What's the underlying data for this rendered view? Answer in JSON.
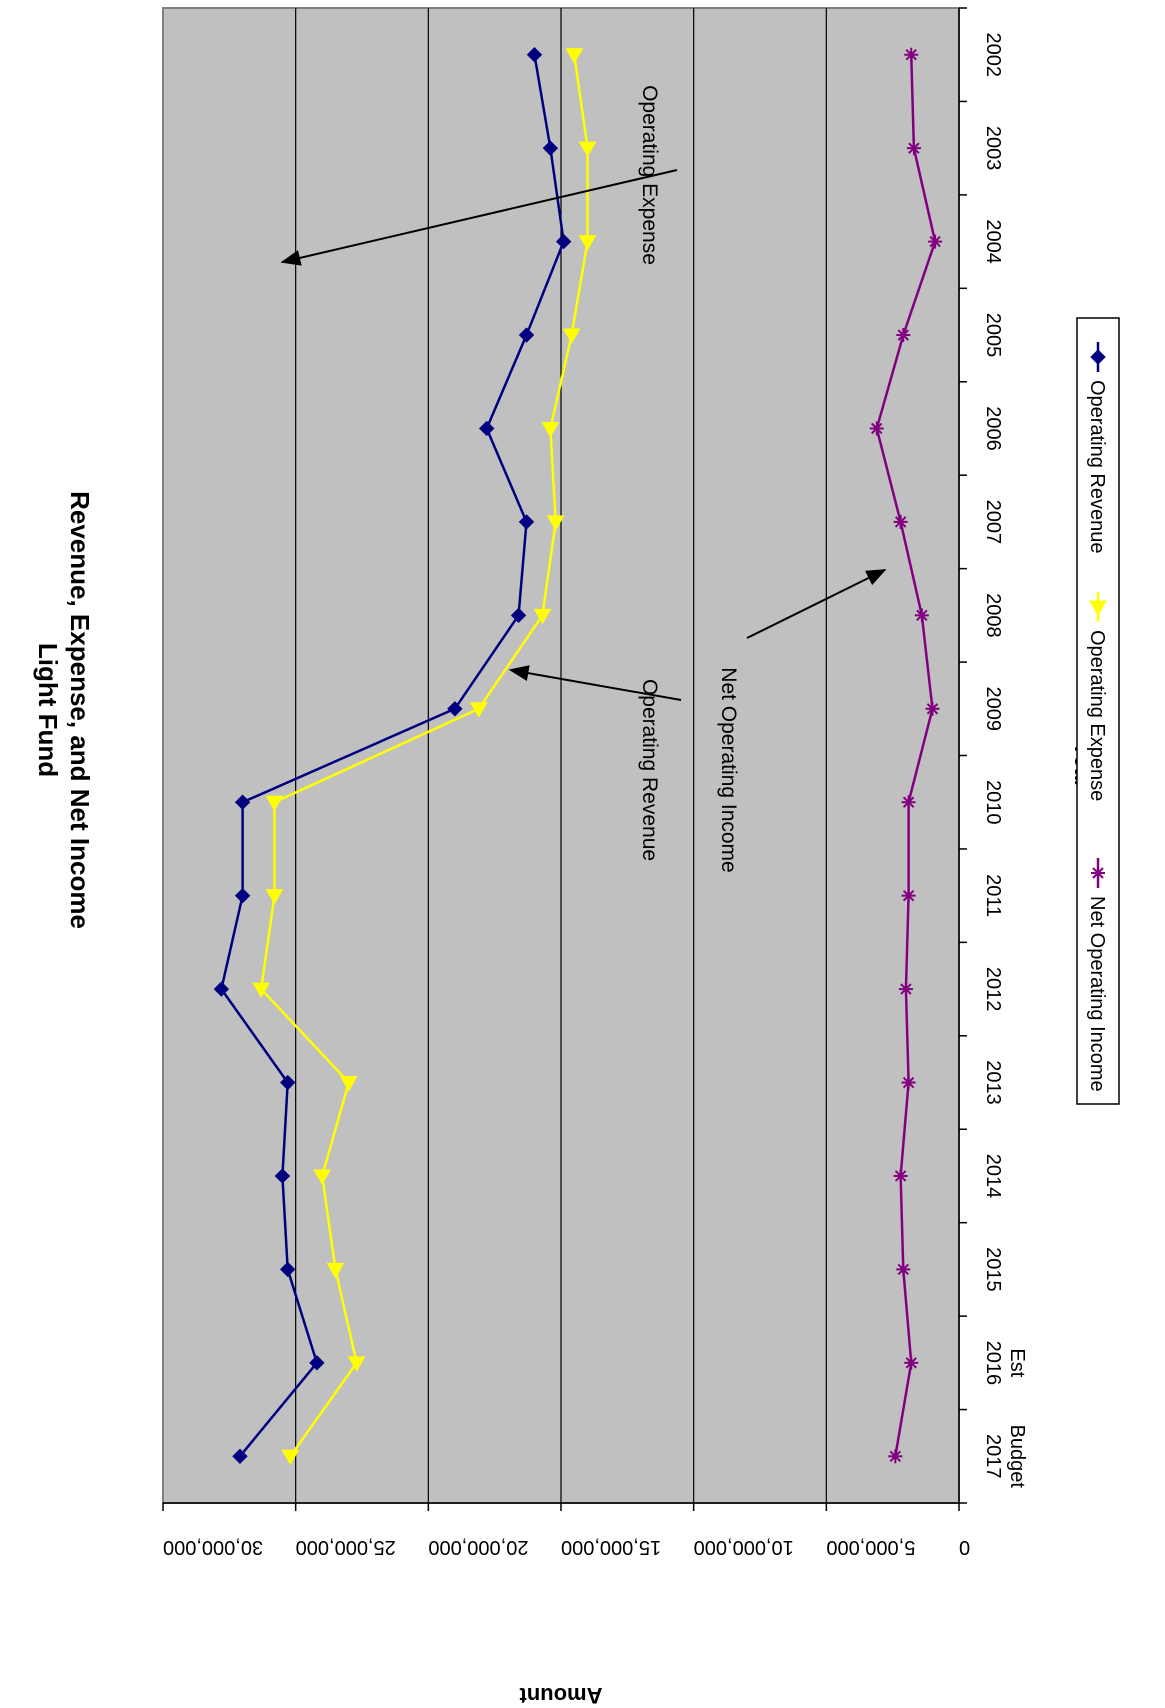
{
  "chart_data": {
    "type": "line",
    "title_line1": "Light Fund",
    "title_line2": "Revenue, Expense, and Net Income",
    "xlabel": "Year",
    "ylabel": "Amount",
    "categories": [
      [
        "2002"
      ],
      [
        "2003"
      ],
      [
        "2004"
      ],
      [
        "2005"
      ],
      [
        "2006"
      ],
      [
        "2007"
      ],
      [
        "2008"
      ],
      [
        "2009"
      ],
      [
        "2010"
      ],
      [
        "2011"
      ],
      [
        "2012"
      ],
      [
        "2013"
      ],
      [
        "2014"
      ],
      [
        "2015"
      ],
      [
        "2016",
        "Est"
      ],
      [
        "2017",
        "Budget"
      ]
    ],
    "ylim": [
      0,
      30000000
    ],
    "yticks": [
      0,
      5000000,
      10000000,
      15000000,
      20000000,
      25000000,
      30000000
    ],
    "ytick_labels": [
      "0",
      "5,000,000",
      "10,000,000",
      "15,000,000",
      "20,000,000",
      "25,000,000",
      "30,000,000"
    ],
    "grid": true,
    "plot_background": "#c0c0c0",
    "legend_position": "bottom",
    "series": [
      {
        "name": "Operating Revenue",
        "color": "#000080",
        "marker": "diamond",
        "values": [
          16000000,
          15400000,
          14900000,
          16300000,
          17800000,
          16300000,
          16600000,
          19000000,
          27000000,
          27000000,
          27800000,
          25300000,
          25500000,
          25300000,
          24200000,
          27100000
        ]
      },
      {
        "name": "Operating Expense",
        "color": "#ffff00",
        "marker": "triangle",
        "values": [
          14500000,
          14000000,
          14000000,
          14600000,
          15400000,
          15200000,
          15700000,
          18100000,
          25800000,
          25800000,
          26300000,
          23000000,
          24000000,
          23500000,
          22700000,
          25200000
        ]
      },
      {
        "name": "Net Operating Income",
        "color": "#800080",
        "marker": "star",
        "values": [
          1800000,
          1700000,
          900000,
          2100000,
          3100000,
          2200000,
          1400000,
          1000000,
          1900000,
          1900000,
          2000000,
          1900000,
          2200000,
          2100000,
          1800000,
          2400000
        ]
      }
    ],
    "annotations": [
      {
        "text": "Operating Revenue",
        "target_series": 0
      },
      {
        "text": "Operating Expense",
        "target_series": 1
      },
      {
        "text": "Net Operating  Income",
        "target_series": 2
      }
    ]
  }
}
